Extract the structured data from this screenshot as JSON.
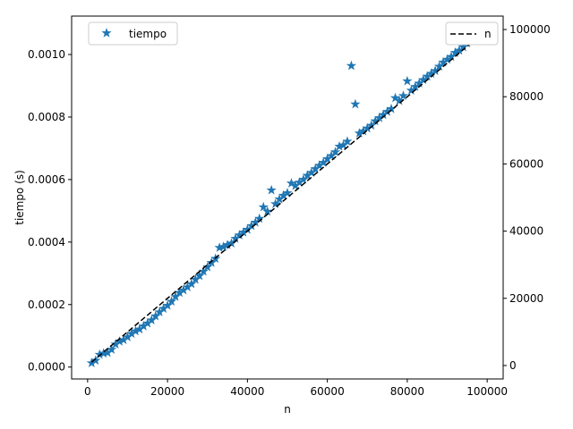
{
  "chart_data": {
    "type": "scatter",
    "xlabel": "n",
    "ylabel": "tiempo (s)",
    "y2label": "",
    "xlim": [
      -4000,
      104000
    ],
    "ylim": [
      -3.8e-05,
      0.001123
    ],
    "y2lim": [
      -4000,
      104000
    ],
    "xticks": [
      0,
      20000,
      40000,
      60000,
      80000,
      100000
    ],
    "xtick_labels": [
      "0",
      "20000",
      "40000",
      "60000",
      "80000",
      "100000"
    ],
    "yticks": [
      0.0,
      0.0002,
      0.0004,
      0.0006,
      0.0008,
      0.001
    ],
    "ytick_labels": [
      "0.0000",
      "0.0002",
      "0.0004",
      "0.0006",
      "0.0008",
      "0.0010"
    ],
    "y2ticks": [
      0,
      20000,
      40000,
      60000,
      80000,
      100000
    ],
    "y2tick_labels": [
      "0",
      "20000",
      "40000",
      "60000",
      "80000",
      "100000"
    ],
    "grid": false,
    "series": [
      {
        "name": "tiempo",
        "axis": "left",
        "marker": "star",
        "color": "#1f77b4",
        "x": [
          1000,
          2000,
          3000,
          4000,
          5000,
          6000,
          7000,
          8000,
          9000,
          10000,
          11000,
          12000,
          13000,
          14000,
          15000,
          16000,
          17000,
          18000,
          19000,
          20000,
          21000,
          22000,
          23000,
          24000,
          25000,
          26000,
          27000,
          28000,
          29000,
          30000,
          31000,
          32000,
          33000,
          34000,
          35000,
          36000,
          37000,
          38000,
          39000,
          40000,
          41000,
          42000,
          43000,
          44000,
          45000,
          46000,
          47000,
          48000,
          49000,
          50000,
          51000,
          52000,
          53000,
          54000,
          55000,
          56000,
          57000,
          58000,
          59000,
          60000,
          61000,
          62000,
          63000,
          64000,
          65000,
          66000,
          67000,
          68000,
          69000,
          70000,
          71000,
          72000,
          73000,
          74000,
          75000,
          76000,
          77000,
          78000,
          79000,
          80000,
          81000,
          82000,
          83000,
          84000,
          85000,
          86000,
          87000,
          88000,
          89000,
          90000,
          91000,
          92000,
          93000,
          94000,
          95000,
          96000,
          97000,
          98000
        ],
        "y": [
          1.3e-05,
          2.1e-05,
          4e-05,
          4.4e-05,
          4.6e-05,
          5.6e-05,
          7.3e-05,
          8.2e-05,
          8.7e-05,
          9.6e-05,
          0.000107,
          0.000115,
          0.000121,
          0.000131,
          0.00014,
          0.00015,
          0.000163,
          0.000176,
          0.000187,
          0.000197,
          0.00021,
          0.000225,
          0.000238,
          0.000246,
          0.000256,
          0.000266,
          0.00028,
          0.000292,
          0.000306,
          0.00032,
          0.000334,
          0.000347,
          0.000382,
          0.000385,
          0.000391,
          0.000396,
          0.000411,
          0.000422,
          0.000431,
          0.00044,
          0.000452,
          0.000463,
          0.000475,
          0.000512,
          0.000498,
          0.000566,
          0.000522,
          0.000537,
          0.000549,
          0.000557,
          0.000588,
          0.00058,
          0.000591,
          0.0006,
          0.000613,
          0.000622,
          0.000634,
          0.000645,
          0.000654,
          0.000666,
          0.000676,
          0.000688,
          0.000706,
          0.00071,
          0.000722,
          0.000964,
          0.000841,
          0.000748,
          0.000755,
          0.000764,
          0.000773,
          0.000787,
          0.000797,
          0.000807,
          0.000817,
          0.000826,
          0.000861,
          0.000852,
          0.000868,
          0.000915,
          0.000885,
          0.000897,
          0.000908,
          0.000919,
          0.00093,
          0.000939,
          0.000948,
          0.000962,
          0.000975,
          0.000984,
          0.000993,
          0.001006,
          0.001013,
          0.001024,
          0.001037,
          0.001049,
          0.001061,
          0.001076
        ]
      },
      {
        "name": "n",
        "axis": "right",
        "style": "dashed",
        "color": "#000000",
        "x": [
          1000,
          98000
        ],
        "y": [
          1000,
          98000
        ]
      }
    ],
    "legends": [
      {
        "entries": [
          "tiempo"
        ],
        "location": "upper left"
      },
      {
        "entries": [
          "n"
        ],
        "location": "upper right"
      }
    ]
  }
}
